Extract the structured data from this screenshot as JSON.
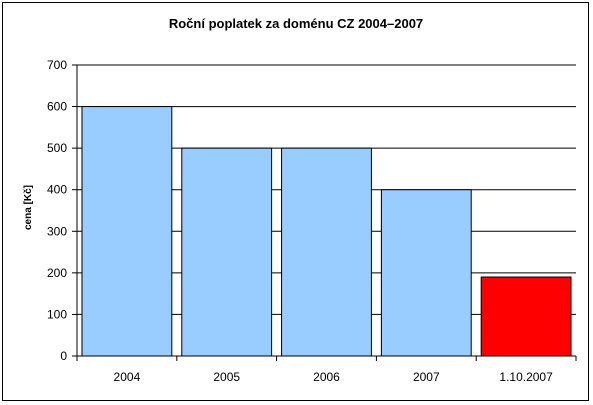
{
  "chart_data": {
    "type": "bar",
    "title": "Roční poplatek za doménu CZ 2004–2007",
    "xlabel": "",
    "ylabel": "cena [Kč]",
    "categories": [
      "2004",
      "2005",
      "2006",
      "2007",
      "1.10.2007"
    ],
    "values": [
      600,
      500,
      500,
      400,
      190
    ],
    "ylim": [
      0,
      700
    ],
    "yticks": [
      "0",
      "100",
      "200",
      "300",
      "400",
      "500",
      "600",
      "700"
    ],
    "grid": true,
    "legend": "none",
    "colors": [
      "#99ccff",
      "#99ccff",
      "#99ccff",
      "#99ccff",
      "#ff0000"
    ]
  }
}
